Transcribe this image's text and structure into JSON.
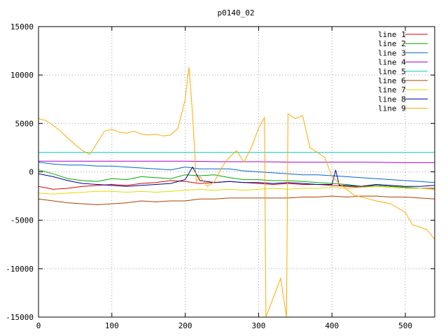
{
  "chart_data": {
    "type": "line",
    "title": "p0140_02",
    "xlabel": "",
    "ylabel": "",
    "xlim": [
      0,
      540
    ],
    "ylim": [
      -15000,
      15000
    ],
    "x_ticks": [
      0,
      100,
      200,
      300,
      400,
      500
    ],
    "y_ticks": [
      -15000,
      -10000,
      -5000,
      0,
      5000,
      10000,
      15000
    ],
    "grid": true,
    "legend_position": "top-right",
    "series": [
      {
        "name": "line 1",
        "color": "#dd0000",
        "points": [
          [
            0,
            -1500
          ],
          [
            20,
            -1800
          ],
          [
            40,
            -1700
          ],
          [
            60,
            -1500
          ],
          [
            80,
            -1400
          ],
          [
            100,
            -1300
          ],
          [
            120,
            -1400
          ],
          [
            140,
            -1200
          ],
          [
            160,
            -1100
          ],
          [
            180,
            -900
          ],
          [
            200,
            -1000
          ],
          [
            220,
            -1200
          ],
          [
            240,
            -1100
          ],
          [
            260,
            -1000
          ],
          [
            280,
            -1100
          ],
          [
            300,
            -1200
          ],
          [
            320,
            -1300
          ],
          [
            340,
            -1200
          ],
          [
            360,
            -1300
          ],
          [
            380,
            -1300
          ],
          [
            400,
            -1400
          ],
          [
            420,
            -1500
          ],
          [
            440,
            -1600
          ],
          [
            460,
            -1400
          ],
          [
            480,
            -1500
          ],
          [
            500,
            -1600
          ],
          [
            520,
            -1700
          ],
          [
            540,
            -1700
          ]
        ]
      },
      {
        "name": "line 2",
        "color": "#00aa00",
        "points": [
          [
            0,
            200
          ],
          [
            20,
            -200
          ],
          [
            40,
            -700
          ],
          [
            60,
            -900
          ],
          [
            80,
            -1000
          ],
          [
            100,
            -700
          ],
          [
            120,
            -800
          ],
          [
            140,
            -500
          ],
          [
            160,
            -600
          ],
          [
            180,
            -700
          ],
          [
            200,
            -300
          ],
          [
            220,
            -400
          ],
          [
            240,
            -300
          ],
          [
            260,
            -600
          ],
          [
            280,
            -800
          ],
          [
            300,
            -800
          ],
          [
            320,
            -900
          ],
          [
            340,
            -900
          ],
          [
            360,
            -1000
          ],
          [
            380,
            -1100
          ],
          [
            400,
            -1200
          ],
          [
            420,
            -1300
          ],
          [
            440,
            -1500
          ],
          [
            460,
            -1400
          ],
          [
            480,
            -1500
          ],
          [
            500,
            -1600
          ],
          [
            520,
            -1700
          ],
          [
            540,
            -1800
          ]
        ]
      },
      {
        "name": "line 3",
        "color": "#0066cc",
        "points": [
          [
            0,
            1000
          ],
          [
            20,
            800
          ],
          [
            40,
            700
          ],
          [
            60,
            700
          ],
          [
            80,
            600
          ],
          [
            100,
            600
          ],
          [
            120,
            500
          ],
          [
            140,
            400
          ],
          [
            160,
            300
          ],
          [
            180,
            200
          ],
          [
            200,
            500
          ],
          [
            220,
            300
          ],
          [
            240,
            300
          ],
          [
            260,
            300
          ],
          [
            280,
            100
          ],
          [
            300,
            0
          ],
          [
            320,
            -100
          ],
          [
            340,
            -200
          ],
          [
            360,
            -300
          ],
          [
            380,
            -300
          ],
          [
            400,
            -400
          ],
          [
            420,
            -500
          ],
          [
            440,
            -600
          ],
          [
            460,
            -700
          ],
          [
            480,
            -800
          ],
          [
            500,
            -900
          ],
          [
            520,
            -1000
          ],
          [
            540,
            -1100
          ]
        ]
      },
      {
        "name": "line 4",
        "color": "#aa00cc",
        "points": [
          [
            0,
            1100
          ],
          [
            50,
            1100
          ],
          [
            100,
            1100
          ],
          [
            150,
            1100
          ],
          [
            200,
            1100
          ],
          [
            250,
            1050
          ],
          [
            300,
            1050
          ],
          [
            350,
            1000
          ],
          [
            400,
            1000
          ],
          [
            450,
            1000
          ],
          [
            500,
            950
          ],
          [
            540,
            950
          ]
        ]
      },
      {
        "name": "line 5",
        "color": "#00cccc",
        "points": [
          [
            0,
            2000
          ],
          [
            50,
            2000
          ],
          [
            100,
            2000
          ],
          [
            150,
            2000
          ],
          [
            200,
            2000
          ],
          [
            250,
            2000
          ],
          [
            300,
            2000
          ],
          [
            350,
            2000
          ],
          [
            400,
            2000
          ],
          [
            450,
            2000
          ],
          [
            500,
            2000
          ],
          [
            540,
            2000
          ]
        ]
      },
      {
        "name": "line 6",
        "color": "#aa4400",
        "points": [
          [
            0,
            -2800
          ],
          [
            20,
            -3000
          ],
          [
            40,
            -3200
          ],
          [
            60,
            -3300
          ],
          [
            80,
            -3400
          ],
          [
            100,
            -3300
          ],
          [
            120,
            -3200
          ],
          [
            140,
            -3000
          ],
          [
            160,
            -3100
          ],
          [
            180,
            -3000
          ],
          [
            200,
            -3000
          ],
          [
            220,
            -2800
          ],
          [
            240,
            -2800
          ],
          [
            260,
            -2700
          ],
          [
            280,
            -2700
          ],
          [
            300,
            -2700
          ],
          [
            320,
            -2700
          ],
          [
            340,
            -2700
          ],
          [
            360,
            -2600
          ],
          [
            380,
            -2600
          ],
          [
            400,
            -2500
          ],
          [
            420,
            -2600
          ],
          [
            440,
            -2500
          ],
          [
            460,
            -2500
          ],
          [
            480,
            -2600
          ],
          [
            500,
            -2600
          ],
          [
            520,
            -2700
          ],
          [
            540,
            -2800
          ]
        ]
      },
      {
        "name": "line 7",
        "color": "#dddd00",
        "points": [
          [
            0,
            -2200
          ],
          [
            20,
            -2300
          ],
          [
            40,
            -2200
          ],
          [
            60,
            -2100
          ],
          [
            80,
            -2000
          ],
          [
            100,
            -2000
          ],
          [
            120,
            -2100
          ],
          [
            140,
            -2000
          ],
          [
            160,
            -2100
          ],
          [
            180,
            -2000
          ],
          [
            200,
            -1900
          ],
          [
            220,
            -1800
          ],
          [
            240,
            -1900
          ],
          [
            260,
            -1800
          ],
          [
            280,
            -1900
          ],
          [
            300,
            -1800
          ],
          [
            320,
            -1700
          ],
          [
            340,
            -1800
          ],
          [
            360,
            -1700
          ],
          [
            380,
            -1700
          ],
          [
            400,
            -1600
          ],
          [
            420,
            -1700
          ],
          [
            440,
            -1600
          ],
          [
            460,
            -1500
          ],
          [
            480,
            -1600
          ],
          [
            500,
            -1700
          ],
          [
            520,
            -1700
          ],
          [
            540,
            -1800
          ]
        ]
      },
      {
        "name": "line 8",
        "color": "#000099",
        "points": [
          [
            0,
            -200
          ],
          [
            20,
            -500
          ],
          [
            40,
            -900
          ],
          [
            60,
            -1200
          ],
          [
            80,
            -1300
          ],
          [
            100,
            -1400
          ],
          [
            120,
            -1500
          ],
          [
            140,
            -1400
          ],
          [
            160,
            -1300
          ],
          [
            180,
            -1200
          ],
          [
            200,
            -800
          ],
          [
            210,
            500
          ],
          [
            220,
            -900
          ],
          [
            240,
            -1100
          ],
          [
            260,
            -1000
          ],
          [
            280,
            -1100
          ],
          [
            300,
            -1100
          ],
          [
            320,
            -1200
          ],
          [
            340,
            -1100
          ],
          [
            360,
            -1200
          ],
          [
            380,
            -1300
          ],
          [
            400,
            -1300
          ],
          [
            405,
            200
          ],
          [
            410,
            -1400
          ],
          [
            420,
            -1400
          ],
          [
            440,
            -1500
          ],
          [
            460,
            -1300
          ],
          [
            480,
            -1400
          ],
          [
            500,
            -1500
          ],
          [
            520,
            -1500
          ],
          [
            540,
            -1400
          ]
        ]
      },
      {
        "name": "line 9",
        "color": "#ffaa00",
        "points": [
          [
            0,
            5500
          ],
          [
            10,
            5300
          ],
          [
            20,
            4800
          ],
          [
            30,
            4200
          ],
          [
            40,
            3500
          ],
          [
            50,
            2800
          ],
          [
            60,
            2200
          ],
          [
            70,
            1800
          ],
          [
            80,
            3000
          ],
          [
            90,
            4200
          ],
          [
            100,
            4400
          ],
          [
            110,
            4100
          ],
          [
            120,
            4000
          ],
          [
            130,
            4200
          ],
          [
            140,
            3900
          ],
          [
            150,
            3800
          ],
          [
            160,
            3900
          ],
          [
            170,
            3700
          ],
          [
            180,
            3800
          ],
          [
            190,
            4500
          ],
          [
            200,
            7500
          ],
          [
            205,
            10800
          ],
          [
            210,
            6000
          ],
          [
            215,
            -1000
          ],
          [
            220,
            -500
          ],
          [
            230,
            -1500
          ],
          [
            240,
            -1000
          ],
          [
            250,
            500
          ],
          [
            260,
            1500
          ],
          [
            270,
            2200
          ],
          [
            280,
            1000
          ],
          [
            290,
            2500
          ],
          [
            300,
            4500
          ],
          [
            308,
            5600
          ],
          [
            310,
            -15000
          ],
          [
            320,
            -13000
          ],
          [
            330,
            -11000
          ],
          [
            338,
            -15000
          ],
          [
            340,
            6000
          ],
          [
            350,
            5500
          ],
          [
            360,
            5800
          ],
          [
            370,
            2500
          ],
          [
            380,
            2000
          ],
          [
            390,
            1500
          ],
          [
            400,
            -500
          ],
          [
            410,
            -1200
          ],
          [
            420,
            -1800
          ],
          [
            430,
            -2400
          ],
          [
            440,
            -2600
          ],
          [
            450,
            -2800
          ],
          [
            460,
            -3000
          ],
          [
            480,
            -3300
          ],
          [
            500,
            -4200
          ],
          [
            510,
            -5500
          ],
          [
            520,
            -5700
          ],
          [
            530,
            -6000
          ],
          [
            540,
            -7000
          ]
        ]
      }
    ]
  }
}
